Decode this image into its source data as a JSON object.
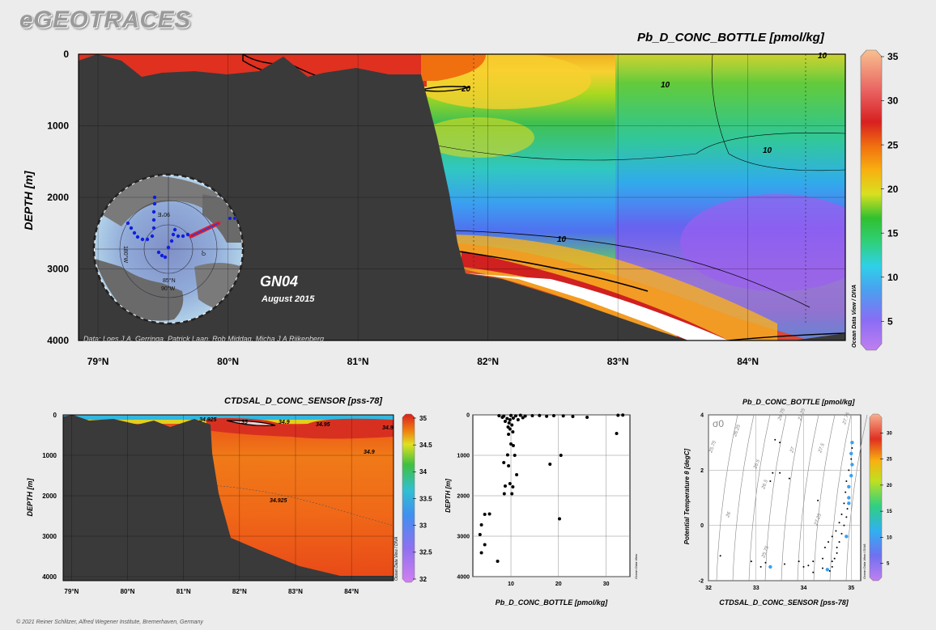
{
  "header": {
    "brand": "eGEOTRACES"
  },
  "footer": {
    "copyright": "© 2021 Reiner Schlitzer, Alfred Wegener Institute, Bremerhaven, Germany"
  },
  "watermark": "Ocean Data View / DIVA",
  "map_inset": {
    "lat_label": "85°N",
    "lon_labels": [
      "90°E",
      "180°W",
      "0°",
      "90°W"
    ]
  },
  "chart_data": [
    {
      "type": "heatmap",
      "id": "main_section",
      "title": "Pb_D_CONC_BOTTLE [pmol/kg]",
      "xlabel": "",
      "ylabel": "DEPTH [m]",
      "x_ticks": [
        "79°N",
        "80°N",
        "81°N",
        "82°N",
        "83°N",
        "84°N"
      ],
      "x_tick_values": [
        79,
        80,
        81,
        82,
        83,
        84
      ],
      "xlim": [
        78.85,
        84.75
      ],
      "y_ticks": [
        0,
        1000,
        2000,
        3000,
        4000
      ],
      "ylim": [
        0,
        4000
      ],
      "colorbar": {
        "min": 2,
        "max": 35,
        "ticks": [
          5,
          10,
          15,
          20,
          25,
          30,
          35
        ]
      },
      "contour_labels": [
        "10",
        "20",
        "10",
        "10",
        "10"
      ],
      "annotations": {
        "section": "GN04",
        "date": "August 2015",
        "credits": "Data: Loes.J.A. Gerringa, Patrick Laan, Rob Middag, Micha J A Rijkenberg"
      },
      "grid": true
    },
    {
      "type": "heatmap",
      "id": "salinity_section",
      "title": "CTDSAL_D_CONC_SENSOR [pss-78]",
      "xlabel": "",
      "ylabel": "DEPTH [m]",
      "x_ticks": [
        "79°N",
        "80°N",
        "81°N",
        "82°N",
        "83°N",
        "84°N"
      ],
      "x_tick_values": [
        79,
        80,
        81,
        82,
        83,
        84
      ],
      "xlim": [
        78.85,
        84.75
      ],
      "y_ticks": [
        0,
        1000,
        2000,
        3000,
        4000
      ],
      "ylim": [
        0,
        4100
      ],
      "colorbar": {
        "min": 32,
        "max": 35,
        "ticks": [
          32,
          32.5,
          33,
          33.5,
          34,
          34.5,
          35
        ]
      },
      "contour_labels": [
        "34.925",
        "35",
        "34.9",
        "34.95",
        "34.9",
        "34.9",
        "34.925"
      ],
      "grid": true
    },
    {
      "type": "scatter",
      "id": "profile",
      "title": "",
      "xlabel": "Pb_D_CONC_BOTTLE [pmol/kg]",
      "ylabel": "DEPTH [m]",
      "xlim": [
        2,
        35
      ],
      "ylim": [
        0,
        4000
      ],
      "x_ticks": [
        10,
        20,
        30
      ],
      "y_ticks": [
        0,
        1000,
        2000,
        3000,
        4000
      ],
      "points": [
        [
          7.5,
          20
        ],
        [
          8.5,
          30
        ],
        [
          10,
          15
        ],
        [
          11,
          25
        ],
        [
          12,
          10
        ],
        [
          13,
          30
        ],
        [
          14.5,
          20
        ],
        [
          16,
          15
        ],
        [
          17.5,
          35
        ],
        [
          19,
          20
        ],
        [
          21,
          25
        ],
        [
          23,
          40
        ],
        [
          26,
          60
        ],
        [
          32.5,
          10
        ],
        [
          33.5,
          5
        ],
        [
          8.2,
          60
        ],
        [
          9.2,
          90
        ],
        [
          9.8,
          120
        ],
        [
          10.5,
          80
        ],
        [
          11.5,
          120
        ],
        [
          12.5,
          70
        ],
        [
          8.8,
          160
        ],
        [
          9.6,
          200
        ],
        [
          10.2,
          250
        ],
        [
          9.4,
          300
        ],
        [
          9.8,
          350
        ],
        [
          10.4,
          420
        ],
        [
          9.5,
          480
        ],
        [
          10,
          720
        ],
        [
          10.5,
          760
        ],
        [
          9.3,
          990
        ],
        [
          10.8,
          1000
        ],
        [
          20.5,
          1000
        ],
        [
          8.5,
          1180
        ],
        [
          9.5,
          1260
        ],
        [
          11.2,
          1480
        ],
        [
          18.2,
          1220
        ],
        [
          9.8,
          1700
        ],
        [
          8.8,
          1760
        ],
        [
          10.4,
          1780
        ],
        [
          8.6,
          1950
        ],
        [
          10.2,
          1950
        ],
        [
          4.5,
          2460
        ],
        [
          5.5,
          2450
        ],
        [
          3.8,
          2720
        ],
        [
          3.5,
          2960
        ],
        [
          4.5,
          3210
        ],
        [
          3.8,
          3410
        ],
        [
          7.2,
          3620
        ],
        [
          20.2,
          2570
        ],
        [
          32.2,
          460
        ]
      ],
      "grid": true
    },
    {
      "type": "scatter",
      "id": "ts_diagram",
      "title": "Pb_D_CONC_BOTTLE [pmol/kg]",
      "xlabel": "CTDSAL_D_CONC_SENSOR [pss-78]",
      "ylabel": "Potential Temperature θ [degC]",
      "xlim": [
        32,
        35.2
      ],
      "ylim": [
        -2,
        4
      ],
      "x_ticks": [
        32,
        33,
        34,
        35
      ],
      "y_ticks": [
        -2,
        0,
        2,
        4
      ],
      "sigma_label": "σ0",
      "isopycnal_labels": [
        "25.75",
        "26",
        "26.25",
        "26.5",
        "26.75",
        "27",
        "27.25",
        "27.5",
        "27.75",
        "25.75",
        "26.5",
        "27.25"
      ],
      "colorbar": {
        "min": 2,
        "max": 33,
        "ticks": [
          5,
          10,
          15,
          20,
          25,
          30
        ]
      },
      "points": [
        [
          32.25,
          -1.1
        ],
        [
          32.9,
          -1.3
        ],
        [
          33.2,
          -1.35
        ],
        [
          33.35,
          1.9
        ],
        [
          33.3,
          1.6
        ],
        [
          33.6,
          -1.4
        ],
        [
          33.5,
          1.9
        ],
        [
          33.7,
          1.7
        ],
        [
          33.4,
          3.1
        ],
        [
          33.5,
          3.0
        ],
        [
          34.3,
          0.9
        ],
        [
          33.9,
          -1.3
        ],
        [
          34.0,
          -1.5
        ],
        [
          34.1,
          -1.45
        ],
        [
          34.2,
          -1.3
        ],
        [
          34.4,
          -1.2
        ],
        [
          34.5,
          -1.6
        ],
        [
          34.55,
          -1.65
        ],
        [
          34.6,
          -1.5
        ],
        [
          34.65,
          -1.2
        ],
        [
          34.7,
          -0.8
        ],
        [
          34.45,
          -0.8
        ],
        [
          34.52,
          -0.6
        ],
        [
          34.6,
          -0.4
        ],
        [
          34.68,
          -0.2
        ],
        [
          34.75,
          0.1
        ],
        [
          34.8,
          0.4
        ],
        [
          34.85,
          0.8
        ],
        [
          34.88,
          1.2
        ],
        [
          34.9,
          1.6
        ],
        [
          34.95,
          2.0
        ],
        [
          35.0,
          2.4
        ],
        [
          35.02,
          2.8
        ],
        [
          34.92,
          0.6
        ],
        [
          34.9,
          0.3
        ],
        [
          34.85,
          0.0
        ],
        [
          34.8,
          -0.3
        ],
        [
          34.75,
          -0.6
        ],
        [
          34.7,
          -1.0
        ],
        [
          34.6,
          -1.3
        ],
        [
          34.4,
          -1.55
        ],
        [
          34.2,
          -1.7
        ],
        [
          33.1,
          -1.5
        ]
      ],
      "colored_points": [
        [
          34.95,
          1.0,
          12
        ],
        [
          34.95,
          0.8,
          10
        ],
        [
          35.0,
          1.8,
          9
        ],
        [
          35.02,
          2.2,
          10
        ],
        [
          35.02,
          3.0,
          9
        ],
        [
          35.0,
          2.6,
          8
        ],
        [
          34.95,
          1.4,
          11
        ],
        [
          34.9,
          -0.4,
          10
        ],
        [
          33.3,
          -1.5,
          10
        ],
        [
          34.5,
          -1.6,
          9
        ]
      ],
      "grid": true
    }
  ]
}
